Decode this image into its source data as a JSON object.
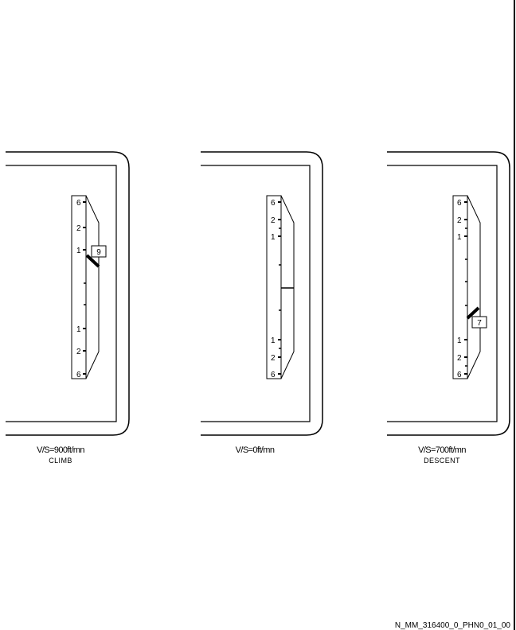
{
  "panels": [
    {
      "vs_caption": "V/S=900ft/mn",
      "mode_caption": "CLIMB",
      "upper_scale": [
        "6",
        "2",
        "1"
      ],
      "lower_scale": [
        "1",
        "2",
        "6"
      ],
      "indication": "9"
    },
    {
      "vs_caption": "V/S=0ft/mn",
      "mode_caption": "",
      "upper_scale": [
        "6",
        "2",
        "1"
      ],
      "lower_scale": [
        "1",
        "2",
        "6"
      ],
      "indication": ""
    },
    {
      "vs_caption": "V/S=700ft/mn",
      "mode_caption": "DESCENT",
      "upper_scale": [
        "6",
        "2",
        "1"
      ],
      "lower_scale": [
        "1",
        "2",
        "6"
      ],
      "indication": "7"
    }
  ],
  "reference_code": "N_MM_316400_0_PHN0_01_00"
}
